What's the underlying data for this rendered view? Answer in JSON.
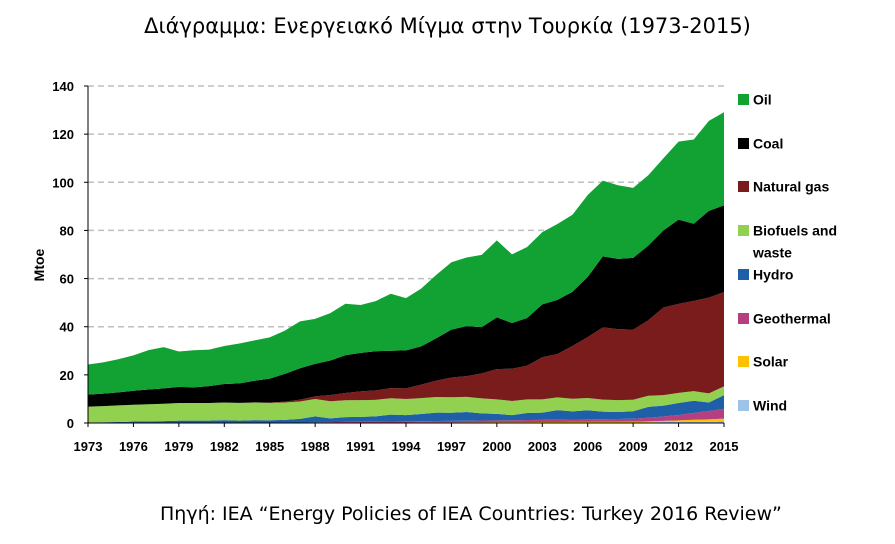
{
  "title": "Διάγραμμα: Ενεργειακό Μίγμα στην Τουρκία (1973-2015)",
  "source": "Πηγή: IEA “Energy Policies of IEA Countries: Turkey 2016 Review”",
  "chart_data": {
    "type": "area",
    "stacked": true,
    "ylabel": "Mtoe",
    "xlabel": "",
    "xlim": [
      1973,
      2015
    ],
    "ylim": [
      0,
      140
    ],
    "yticks": [
      0,
      20,
      40,
      60,
      80,
      100,
      120,
      140
    ],
    "xticks": [
      1973,
      1976,
      1979,
      1982,
      1985,
      1988,
      1991,
      1994,
      1997,
      2000,
      2003,
      2006,
      2009,
      2012,
      2015
    ],
    "grid": "horizontal-dashed",
    "legend_position": "right",
    "x": [
      1973,
      1974,
      1975,
      1976,
      1977,
      1978,
      1979,
      1980,
      1981,
      1982,
      1983,
      1984,
      1985,
      1986,
      1987,
      1988,
      1989,
      1990,
      1991,
      1992,
      1993,
      1994,
      1995,
      1996,
      1997,
      1998,
      1999,
      2000,
      2001,
      2002,
      2003,
      2004,
      2005,
      2006,
      2007,
      2008,
      2009,
      2010,
      2011,
      2012,
      2013,
      2014,
      2015
    ],
    "series": [
      {
        "name": "Wind",
        "color": "#9dc3e6",
        "values": [
          0,
          0,
          0,
          0,
          0,
          0,
          0,
          0,
          0,
          0,
          0,
          0,
          0,
          0,
          0,
          0,
          0,
          0,
          0,
          0,
          0,
          0,
          0,
          0,
          0,
          0,
          0,
          0,
          0,
          0,
          0,
          0,
          0,
          0,
          0.05,
          0.08,
          0.13,
          0.25,
          0.4,
          0.5,
          0.65,
          0.7,
          0.9
        ]
      },
      {
        "name": "Solar",
        "color": "#ffc000",
        "values": [
          0,
          0,
          0,
          0,
          0,
          0,
          0,
          0,
          0,
          0,
          0,
          0,
          0.05,
          0.1,
          0.1,
          0.12,
          0.14,
          0.15,
          0.17,
          0.18,
          0.2,
          0.22,
          0.24,
          0.26,
          0.28,
          0.3,
          0.32,
          0.34,
          0.36,
          0.38,
          0.4,
          0.42,
          0.45,
          0.45,
          0.45,
          0.45,
          0.45,
          0.45,
          0.5,
          0.6,
          0.7,
          0.8,
          0.9
        ]
      },
      {
        "name": "Geothermal",
        "color": "#b5407f",
        "values": [
          0,
          0,
          0,
          0,
          0,
          0,
          0,
          0,
          0,
          0,
          0,
          0,
          0.1,
          0.1,
          0.12,
          0.15,
          0.2,
          0.3,
          0.35,
          0.35,
          0.4,
          0.45,
          0.5,
          0.55,
          0.6,
          0.65,
          0.7,
          0.75,
          0.8,
          0.85,
          0.9,
          0.95,
          1.0,
          1.05,
          1.1,
          1.15,
          1.2,
          1.5,
          1.8,
          2.2,
          2.8,
          3.5,
          4.0
        ]
      },
      {
        "name": "Hydro",
        "color": "#1f5fa8",
        "values": [
          0.2,
          0.3,
          0.4,
          0.6,
          0.7,
          0.8,
          1.0,
          1.0,
          1.0,
          1.2,
          1.0,
          1.2,
          1.0,
          1.1,
          1.5,
          2.5,
          1.6,
          2.0,
          2.0,
          2.2,
          2.9,
          2.6,
          3.0,
          3.5,
          3.4,
          3.6,
          3.0,
          2.7,
          2.1,
          2.9,
          3.0,
          4.0,
          3.4,
          3.8,
          3.1,
          2.9,
          3.1,
          4.5,
          4.5,
          5.0,
          5.1,
          3.5,
          5.8
        ]
      },
      {
        "name": "Biofuels and waste",
        "color": "#92d050",
        "values": [
          6.6,
          6.7,
          6.9,
          7.0,
          7.1,
          7.2,
          7.3,
          7.3,
          7.3,
          7.3,
          7.3,
          7.3,
          7.2,
          7.2,
          7.2,
          7.2,
          7.1,
          7.0,
          7.0,
          6.9,
          6.8,
          6.7,
          6.6,
          6.5,
          6.4,
          6.3,
          6.2,
          6.0,
          5.9,
          5.7,
          5.5,
          5.3,
          5.2,
          5.1,
          5.0,
          4.9,
          4.8,
          4.6,
          4.4,
          4.2,
          4.0,
          3.8,
          3.6
        ]
      },
      {
        "name": "Natural gas",
        "color": "#7b1c1c",
        "values": [
          0,
          0,
          0,
          0,
          0,
          0,
          0,
          0,
          0,
          0,
          0.05,
          0.05,
          0.1,
          0.4,
          0.8,
          1.1,
          2.6,
          3.0,
          3.6,
          3.9,
          4.2,
          4.4,
          5.6,
          6.8,
          8.2,
          8.6,
          10.4,
          12.6,
          13.4,
          14.0,
          17.5,
          18.0,
          22.0,
          25.3,
          30.0,
          29.5,
          29.1,
          31.4,
          36.4,
          37.0,
          37.5,
          39.8,
          39.2
        ]
      },
      {
        "name": "Coal",
        "color": "#000000",
        "values": [
          5.0,
          5.2,
          5.4,
          5.8,
          6.1,
          6.4,
          6.7,
          6.5,
          7.0,
          7.7,
          8.1,
          9.0,
          10.0,
          11.5,
          13.0,
          13.5,
          14.3,
          15.7,
          16.0,
          16.3,
          15.5,
          15.8,
          15.9,
          17.6,
          19.9,
          20.8,
          19.2,
          21.5,
          19.0,
          19.8,
          22.0,
          22.5,
          22.5,
          25.0,
          29.5,
          29.2,
          29.8,
          31.0,
          32.0,
          35.0,
          32.0,
          36.0,
          36.0
        ]
      },
      {
        "name": "Oil",
        "color": "#12a233",
        "values": [
          12.5,
          13.0,
          13.8,
          14.7,
          16.4,
          17.1,
          14.7,
          15.4,
          15.2,
          15.8,
          16.6,
          16.8,
          17.1,
          18.0,
          19.5,
          18.7,
          19.7,
          21.4,
          19.9,
          20.8,
          23.7,
          21.7,
          24.0,
          26.3,
          28.0,
          28.5,
          30.0,
          32.0,
          28.5,
          29.5,
          30.0,
          31.5,
          32.0,
          34.0,
          31.5,
          30.6,
          29.1,
          29.2,
          30.0,
          32.4,
          35.0,
          37.4,
          38.7
        ]
      }
    ],
    "legend_order": [
      "Oil",
      "Coal",
      "Natural gas",
      "Biofuels and waste",
      "Hydro",
      "Geothermal",
      "Solar",
      "Wind"
    ]
  }
}
